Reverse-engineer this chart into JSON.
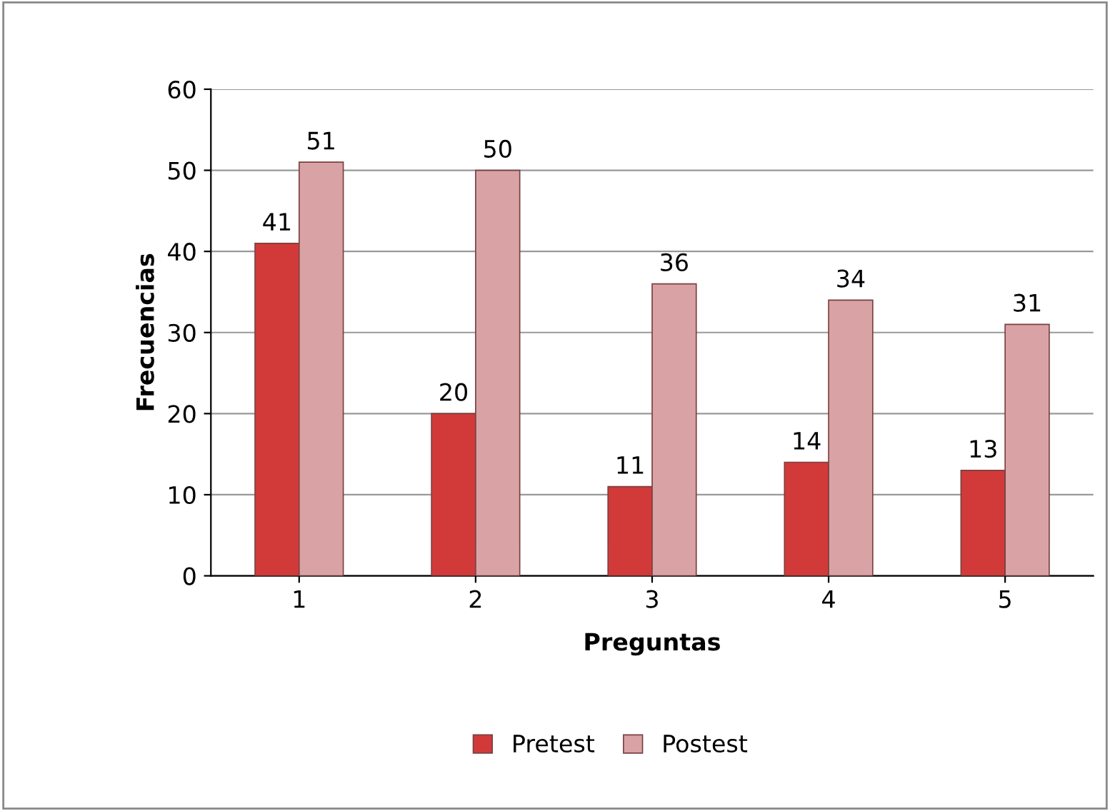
{
  "chart_data": {
    "type": "bar",
    "xlabel": "Preguntas",
    "ylabel": "Frecuencias",
    "categories": [
      "1",
      "2",
      "3",
      "4",
      "5"
    ],
    "series": [
      {
        "name": "Pretest",
        "color": "#d23a3a",
        "values": [
          41,
          20,
          11,
          14,
          13
        ]
      },
      {
        "name": "Postest",
        "color": "#d9a3a6",
        "values": [
          51,
          50,
          36,
          34,
          31
        ]
      }
    ],
    "ylim": [
      0,
      60
    ],
    "yticks": [
      0,
      10,
      20,
      30,
      40,
      50,
      60
    ],
    "grid": "y",
    "legend": "bottom",
    "data_labels": true
  }
}
